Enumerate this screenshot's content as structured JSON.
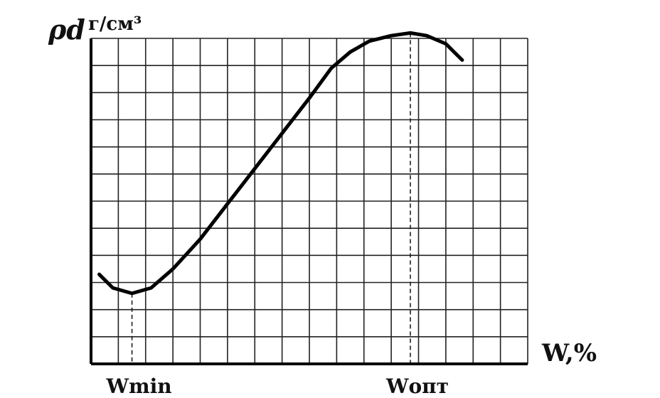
{
  "chart_data": {
    "type": "line",
    "xlabel": "W,%",
    "ylabel": "ρd, г/см³",
    "ylabel_parts": {
      "symbol": "ρd",
      "unit": "г/см³"
    },
    "grid": true,
    "legend": "none",
    "xlim": [
      0,
      16
    ],
    "ylim": [
      0,
      12
    ],
    "tick_labels": [
      "Wmin",
      "Wопт"
    ],
    "markers": [
      {
        "label": "Wmin",
        "x": 1.5
      },
      {
        "label": "Wопт",
        "x": 11.7
      }
    ],
    "series": [
      {
        "x": [
          0.3,
          0.8,
          1.5,
          2.2,
          3.0,
          4.0,
          5.0,
          6.0,
          7.0,
          8.0,
          8.8,
          9.5,
          10.2,
          11.0,
          11.7,
          12.3,
          13.0,
          13.6
        ],
        "y": [
          3.3,
          2.8,
          2.6,
          2.8,
          3.5,
          4.6,
          5.9,
          7.2,
          8.5,
          9.8,
          10.9,
          11.5,
          11.9,
          12.1,
          12.2,
          12.1,
          11.8,
          11.2
        ]
      }
    ]
  }
}
